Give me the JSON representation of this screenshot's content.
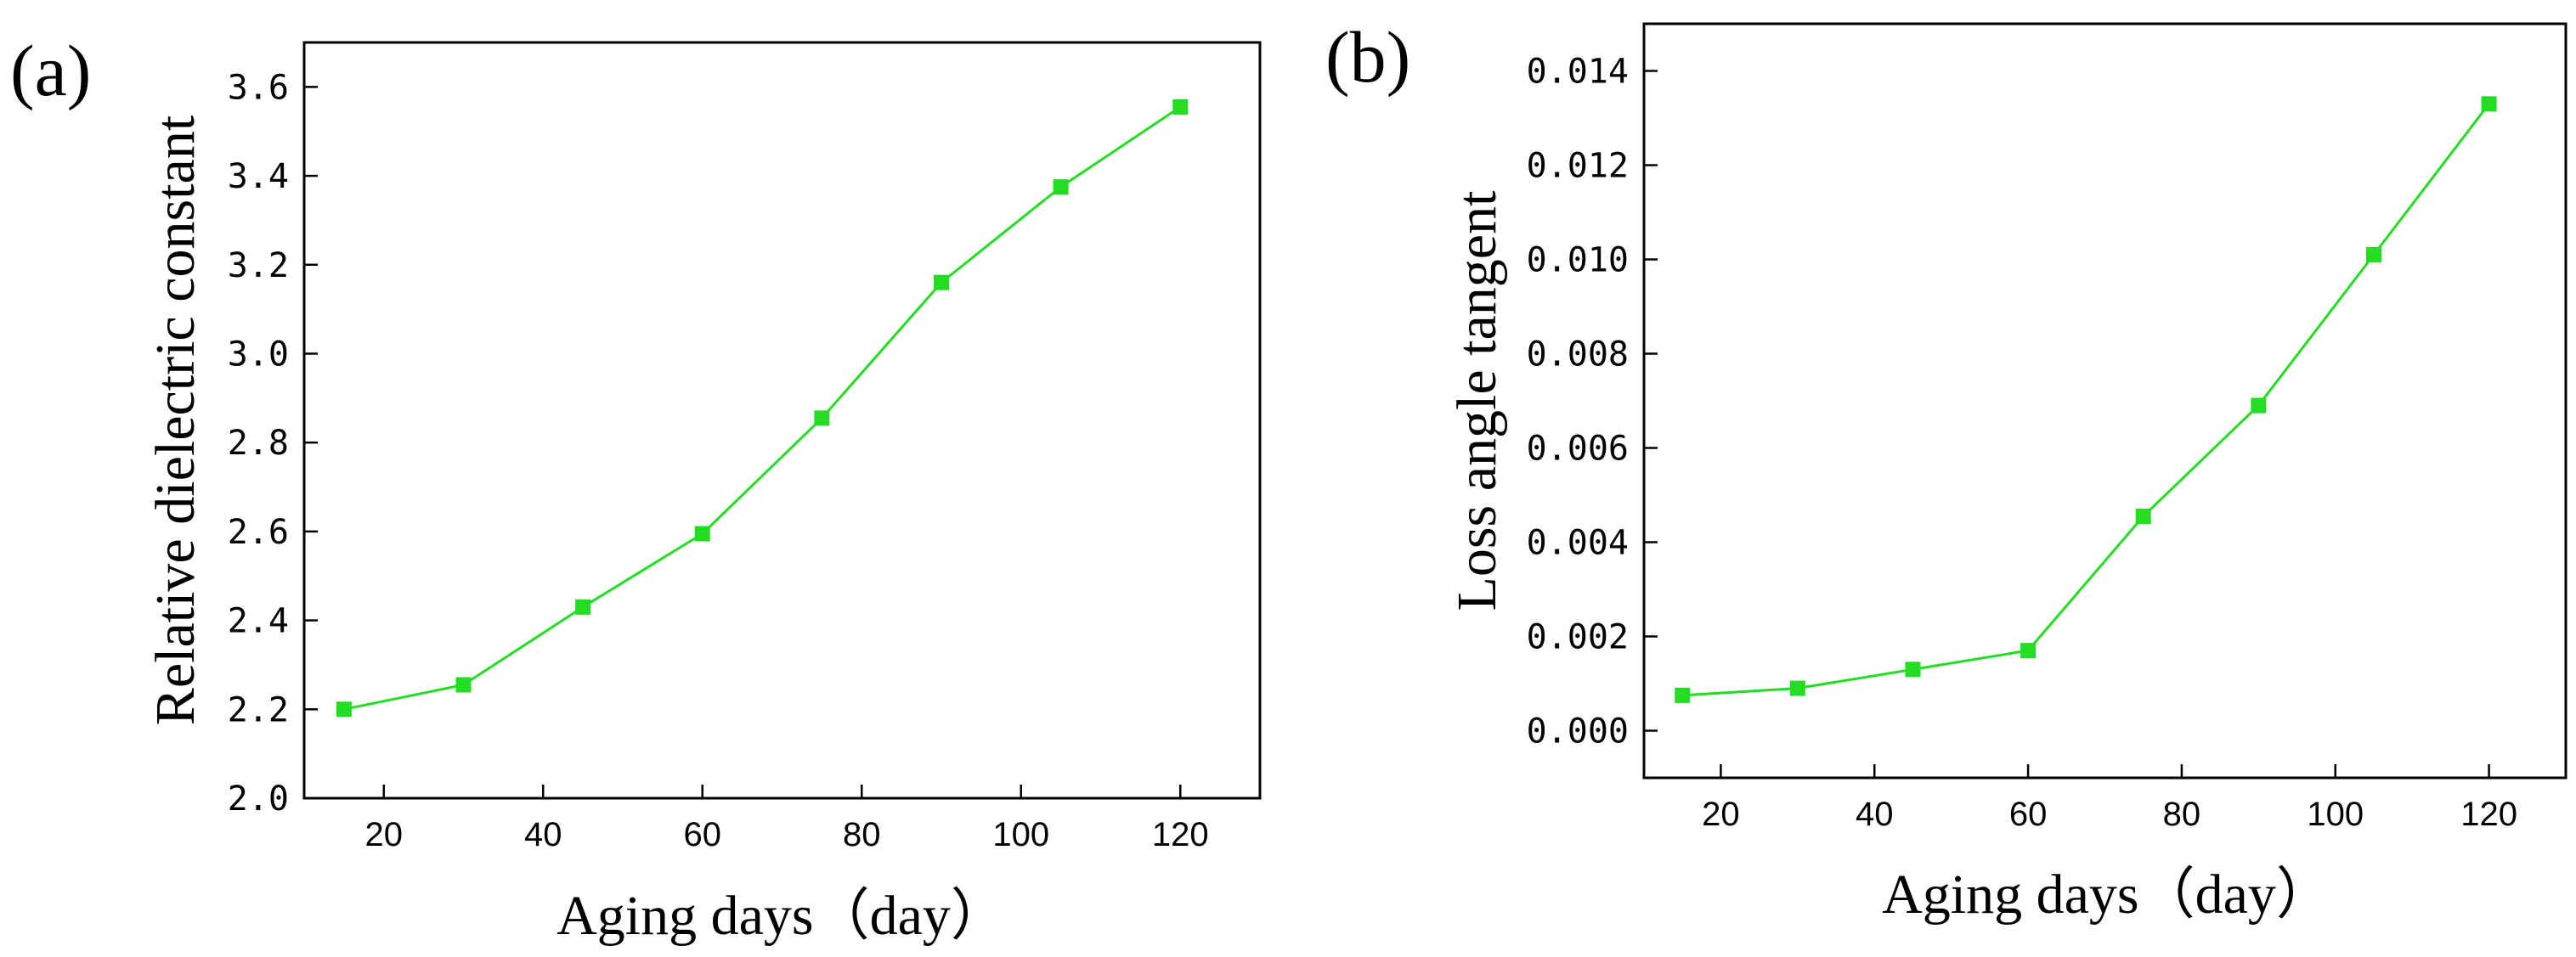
{
  "chart_data": [
    {
      "panel_label": "(a)",
      "type": "line",
      "title": "",
      "xlabel": "Aging days（day）",
      "ylabel": "Relative dielectric constant",
      "x": [
        15,
        30,
        45,
        60,
        75,
        90,
        105,
        120
      ],
      "series": [
        {
          "name": "Relative dielectric constant",
          "values": [
            2.2,
            2.255,
            2.43,
            2.595,
            2.855,
            3.16,
            3.375,
            3.555
          ],
          "color": "#22dd22",
          "marker": "square"
        }
      ],
      "xlim": [
        10,
        130
      ],
      "ylim": [
        2.0,
        3.7
      ],
      "xticks": [
        20,
        40,
        60,
        80,
        100,
        120
      ],
      "yticks": [
        2.0,
        2.2,
        2.4,
        2.6,
        2.8,
        3.0,
        3.2,
        3.4,
        3.6
      ],
      "xtick_labels": [
        "20",
        "40",
        "60",
        "80",
        "100",
        "120"
      ],
      "ytick_labels": [
        "2.0",
        "2.2",
        "2.4",
        "2.6",
        "2.8",
        "3.0",
        "3.2",
        "3.4",
        "3.6"
      ],
      "grid": false,
      "legend": "none"
    },
    {
      "panel_label": "(b)",
      "type": "line",
      "title": "",
      "xlabel": "Aging days（day）",
      "ylabel": "Loss angle tangent",
      "x": [
        15,
        30,
        45,
        60,
        75,
        90,
        105,
        120
      ],
      "series": [
        {
          "name": "Loss angle tangent",
          "values": [
            0.00075,
            0.0009,
            0.0013,
            0.0017,
            0.00455,
            0.0069,
            0.0101,
            0.0133
          ],
          "color": "#22dd22",
          "marker": "square"
        }
      ],
      "xlim": [
        10,
        130
      ],
      "ylim": [
        -0.001,
        0.015
      ],
      "xticks": [
        20,
        40,
        60,
        80,
        100,
        120
      ],
      "yticks": [
        0.0,
        0.002,
        0.004,
        0.006,
        0.008,
        0.01,
        0.012,
        0.014
      ],
      "xtick_labels": [
        "20",
        "40",
        "60",
        "80",
        "100",
        "120"
      ],
      "ytick_labels": [
        "0.000",
        "0.002",
        "0.004",
        "0.006",
        "0.008",
        "0.010",
        "0.012",
        "0.014"
      ],
      "grid": false,
      "legend": "none"
    }
  ]
}
